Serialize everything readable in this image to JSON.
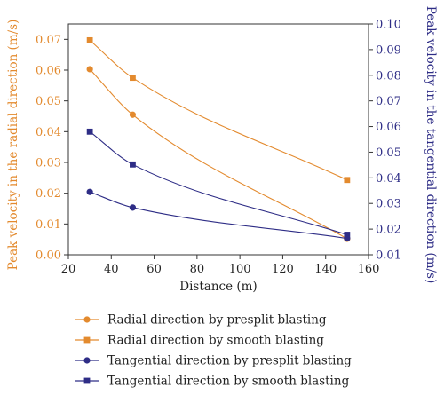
{
  "chart_data": {
    "type": "line",
    "xlabel": "Distance (m)",
    "ylabel_left": "Peak velocity in the radial direction (m/s)",
    "ylabel_right": "Peak velocity in the tangential direction (m/s)",
    "xlim": [
      20,
      160
    ],
    "ylim_left": [
      0,
      0.075
    ],
    "ylim_right": [
      0.01,
      0.1
    ],
    "xticks": [
      "20",
      "40",
      "60",
      "80",
      "100",
      "120",
      "140",
      "160"
    ],
    "yticks_left": [
      "0.00",
      "0.01",
      "0.02",
      "0.03",
      "0.04",
      "0.05",
      "0.06",
      "0.07"
    ],
    "yticks_right": [
      "0.01",
      "0.02",
      "0.03",
      "0.04",
      "0.05",
      "0.06",
      "0.07",
      "0.08",
      "0.09",
      "0.10"
    ],
    "grid": false,
    "legend_placement": "below",
    "colors": {
      "radial": "#e38a2e",
      "tangential": "#2e2d86",
      "axis": "#333333"
    },
    "series": [
      {
        "name": "Radial direction by presplit blasting",
        "axis": "left",
        "marker": "circle",
        "x": [
          30,
          50,
          150
        ],
        "values": [
          0.0603,
          0.0455,
          0.0052
        ]
      },
      {
        "name": "Radial direction by smooth blasting",
        "axis": "left",
        "marker": "square",
        "x": [
          30,
          50,
          150
        ],
        "values": [
          0.0697,
          0.0575,
          0.0243
        ]
      },
      {
        "name": "Tangential direction by presplit blasting",
        "axis": "right",
        "marker": "circle",
        "x": [
          30,
          50,
          150
        ],
        "values": [
          0.0345,
          0.0284,
          0.0164
        ]
      },
      {
        "name": "Tangential direction by smooth blasting",
        "axis": "right",
        "marker": "square",
        "x": [
          30,
          50,
          150
        ],
        "values": [
          0.058,
          0.0452,
          0.0178
        ]
      }
    ]
  }
}
